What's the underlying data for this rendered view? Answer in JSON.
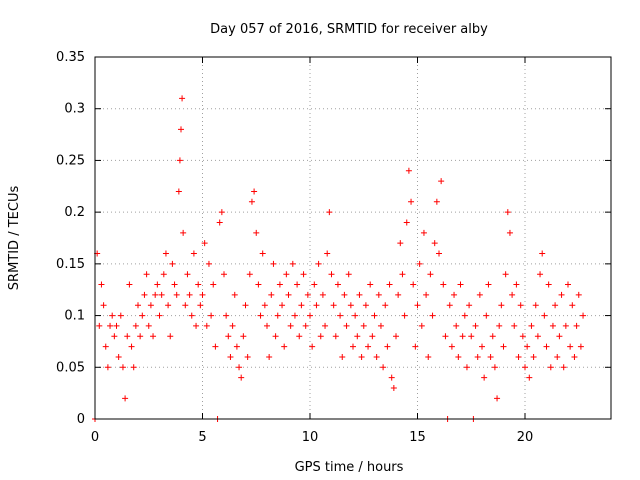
{
  "chart_data": {
    "type": "scatter",
    "title": "Day 057 of 2016, SRMTID for receiver alby",
    "xlabel": "GPS time / hours",
    "ylabel": "SRMTID / TECUs",
    "xlim": [
      0,
      24
    ],
    "ylim": [
      0,
      0.35
    ],
    "x_ticks": [
      0,
      5,
      10,
      15,
      20
    ],
    "x_tick_labels": [
      "0",
      "5",
      "10",
      "15",
      "20"
    ],
    "y_ticks": [
      0,
      0.05,
      0.1,
      0.15,
      0.2,
      0.25,
      0.3,
      0.35
    ],
    "y_tick_labels": [
      "0",
      "0.05",
      "0.1",
      "0.15",
      "0.2",
      "0.25",
      "0.3",
      "0.35"
    ],
    "grid": true,
    "marker": "plus",
    "marker_color": "#ff0000",
    "series": [
      {
        "name": "SRMTID",
        "points": [
          [
            0.0,
            0.0
          ],
          [
            0.1,
            0.16
          ],
          [
            0.2,
            0.09
          ],
          [
            0.3,
            0.13
          ],
          [
            0.4,
            0.11
          ],
          [
            0.5,
            0.07
          ],
          [
            0.6,
            0.05
          ],
          [
            0.7,
            0.09
          ],
          [
            0.8,
            0.1
          ],
          [
            0.9,
            0.08
          ],
          [
            1.0,
            0.09
          ],
          [
            1.1,
            0.06
          ],
          [
            1.2,
            0.1
          ],
          [
            1.3,
            0.05
          ],
          [
            1.4,
            0.02
          ],
          [
            1.5,
            0.08
          ],
          [
            1.6,
            0.13
          ],
          [
            1.7,
            0.07
          ],
          [
            1.8,
            0.05
          ],
          [
            1.9,
            0.09
          ],
          [
            2.0,
            0.11
          ],
          [
            2.1,
            0.08
          ],
          [
            2.2,
            0.1
          ],
          [
            2.3,
            0.12
          ],
          [
            2.4,
            0.14
          ],
          [
            2.5,
            0.09
          ],
          [
            2.6,
            0.11
          ],
          [
            2.7,
            0.08
          ],
          [
            2.8,
            0.12
          ],
          [
            2.9,
            0.13
          ],
          [
            3.0,
            0.1
          ],
          [
            3.1,
            0.12
          ],
          [
            3.2,
            0.14
          ],
          [
            3.3,
            0.16
          ],
          [
            3.4,
            0.11
          ],
          [
            3.5,
            0.08
          ],
          [
            3.6,
            0.15
          ],
          [
            3.7,
            0.13
          ],
          [
            3.8,
            0.12
          ],
          [
            3.9,
            0.22
          ],
          [
            3.95,
            0.25
          ],
          [
            4.0,
            0.28
          ],
          [
            4.05,
            0.31
          ],
          [
            4.1,
            0.18
          ],
          [
            4.2,
            0.11
          ],
          [
            4.3,
            0.14
          ],
          [
            4.4,
            0.12
          ],
          [
            4.5,
            0.1
          ],
          [
            4.6,
            0.16
          ],
          [
            4.7,
            0.09
          ],
          [
            4.8,
            0.13
          ],
          [
            4.9,
            0.11
          ],
          [
            5.0,
            0.12
          ],
          [
            5.1,
            0.17
          ],
          [
            5.2,
            0.09
          ],
          [
            5.3,
            0.15
          ],
          [
            5.4,
            0.1
          ],
          [
            5.5,
            0.13
          ],
          [
            5.6,
            0.07
          ],
          [
            5.7,
            0.0
          ],
          [
            5.8,
            0.19
          ],
          [
            5.9,
            0.2
          ],
          [
            6.0,
            0.14
          ],
          [
            6.1,
            0.1
          ],
          [
            6.2,
            0.08
          ],
          [
            6.3,
            0.06
          ],
          [
            6.4,
            0.09
          ],
          [
            6.5,
            0.12
          ],
          [
            6.6,
            0.07
          ],
          [
            6.7,
            0.05
          ],
          [
            6.8,
            0.04
          ],
          [
            6.9,
            0.08
          ],
          [
            7.0,
            0.11
          ],
          [
            7.1,
            0.06
          ],
          [
            7.2,
            0.14
          ],
          [
            7.3,
            0.21
          ],
          [
            7.4,
            0.22
          ],
          [
            7.5,
            0.18
          ],
          [
            7.6,
            0.13
          ],
          [
            7.7,
            0.1
          ],
          [
            7.8,
            0.16
          ],
          [
            7.9,
            0.11
          ],
          [
            8.0,
            0.09
          ],
          [
            8.1,
            0.06
          ],
          [
            8.2,
            0.12
          ],
          [
            8.3,
            0.15
          ],
          [
            8.4,
            0.08
          ],
          [
            8.5,
            0.1
          ],
          [
            8.6,
            0.13
          ],
          [
            8.7,
            0.11
          ],
          [
            8.8,
            0.07
          ],
          [
            8.9,
            0.14
          ],
          [
            9.0,
            0.12
          ],
          [
            9.1,
            0.09
          ],
          [
            9.2,
            0.15
          ],
          [
            9.3,
            0.1
          ],
          [
            9.4,
            0.13
          ],
          [
            9.5,
            0.08
          ],
          [
            9.6,
            0.11
          ],
          [
            9.7,
            0.14
          ],
          [
            9.8,
            0.09
          ],
          [
            9.9,
            0.12
          ],
          [
            10.0,
            0.1
          ],
          [
            10.1,
            0.07
          ],
          [
            10.2,
            0.13
          ],
          [
            10.3,
            0.11
          ],
          [
            10.4,
            0.15
          ],
          [
            10.5,
            0.08
          ],
          [
            10.6,
            0.12
          ],
          [
            10.7,
            0.09
          ],
          [
            10.8,
            0.16
          ],
          [
            10.9,
            0.2
          ],
          [
            11.0,
            0.14
          ],
          [
            11.1,
            0.11
          ],
          [
            11.2,
            0.08
          ],
          [
            11.3,
            0.13
          ],
          [
            11.4,
            0.1
          ],
          [
            11.5,
            0.06
          ],
          [
            11.6,
            0.12
          ],
          [
            11.7,
            0.09
          ],
          [
            11.8,
            0.14
          ],
          [
            11.9,
            0.11
          ],
          [
            12.0,
            0.07
          ],
          [
            12.1,
            0.1
          ],
          [
            12.2,
            0.08
          ],
          [
            12.3,
            0.12
          ],
          [
            12.4,
            0.06
          ],
          [
            12.5,
            0.09
          ],
          [
            12.6,
            0.11
          ],
          [
            12.7,
            0.07
          ],
          [
            12.8,
            0.13
          ],
          [
            12.9,
            0.08
          ],
          [
            13.0,
            0.1
          ],
          [
            13.1,
            0.06
          ],
          [
            13.2,
            0.12
          ],
          [
            13.3,
            0.09
          ],
          [
            13.4,
            0.05
          ],
          [
            13.5,
            0.11
          ],
          [
            13.6,
            0.07
          ],
          [
            13.7,
            0.13
          ],
          [
            13.8,
            0.04
          ],
          [
            13.9,
            0.03
          ],
          [
            14.0,
            0.08
          ],
          [
            14.1,
            0.12
          ],
          [
            14.2,
            0.17
          ],
          [
            14.3,
            0.14
          ],
          [
            14.4,
            0.1
          ],
          [
            14.5,
            0.19
          ],
          [
            14.6,
            0.24
          ],
          [
            14.7,
            0.21
          ],
          [
            14.8,
            0.13
          ],
          [
            14.9,
            0.07
          ],
          [
            15.0,
            0.11
          ],
          [
            15.1,
            0.15
          ],
          [
            15.2,
            0.09
          ],
          [
            15.3,
            0.18
          ],
          [
            15.4,
            0.12
          ],
          [
            15.5,
            0.06
          ],
          [
            15.6,
            0.14
          ],
          [
            15.7,
            0.1
          ],
          [
            15.8,
            0.17
          ],
          [
            15.9,
            0.21
          ],
          [
            16.0,
            0.16
          ],
          [
            16.1,
            0.23
          ],
          [
            16.2,
            0.13
          ],
          [
            16.3,
            0.08
          ],
          [
            16.4,
            0.0
          ],
          [
            16.5,
            0.11
          ],
          [
            16.6,
            0.07
          ],
          [
            16.7,
            0.12
          ],
          [
            16.8,
            0.09
          ],
          [
            16.9,
            0.06
          ],
          [
            17.0,
            0.13
          ],
          [
            17.1,
            0.08
          ],
          [
            17.2,
            0.1
          ],
          [
            17.3,
            0.05
          ],
          [
            17.4,
            0.11
          ],
          [
            17.5,
            0.08
          ],
          [
            17.6,
            0.0
          ],
          [
            17.7,
            0.09
          ],
          [
            17.8,
            0.06
          ],
          [
            17.9,
            0.12
          ],
          [
            18.0,
            0.07
          ],
          [
            18.1,
            0.04
          ],
          [
            18.2,
            0.1
          ],
          [
            18.3,
            0.13
          ],
          [
            18.4,
            0.06
          ],
          [
            18.5,
            0.08
          ],
          [
            18.6,
            0.05
          ],
          [
            18.7,
            0.02
          ],
          [
            18.8,
            0.09
          ],
          [
            18.9,
            0.11
          ],
          [
            19.0,
            0.07
          ],
          [
            19.1,
            0.14
          ],
          [
            19.2,
            0.2
          ],
          [
            19.3,
            0.18
          ],
          [
            19.4,
            0.12
          ],
          [
            19.5,
            0.09
          ],
          [
            19.6,
            0.13
          ],
          [
            19.7,
            0.06
          ],
          [
            19.8,
            0.11
          ],
          [
            19.9,
            0.08
          ],
          [
            20.0,
            0.05
          ],
          [
            20.1,
            0.07
          ],
          [
            20.2,
            0.04
          ],
          [
            20.3,
            0.09
          ],
          [
            20.4,
            0.06
          ],
          [
            20.5,
            0.11
          ],
          [
            20.6,
            0.08
          ],
          [
            20.7,
            0.14
          ],
          [
            20.8,
            0.16
          ],
          [
            20.9,
            0.1
          ],
          [
            21.0,
            0.07
          ],
          [
            21.1,
            0.13
          ],
          [
            21.2,
            0.05
          ],
          [
            21.3,
            0.09
          ],
          [
            21.4,
            0.11
          ],
          [
            21.5,
            0.06
          ],
          [
            21.6,
            0.08
          ],
          [
            21.7,
            0.12
          ],
          [
            21.8,
            0.05
          ],
          [
            21.9,
            0.09
          ],
          [
            22.0,
            0.13
          ],
          [
            22.1,
            0.07
          ],
          [
            22.2,
            0.11
          ],
          [
            22.3,
            0.06
          ],
          [
            22.4,
            0.09
          ],
          [
            22.5,
            0.12
          ],
          [
            22.6,
            0.07
          ],
          [
            22.7,
            0.1
          ]
        ]
      }
    ]
  }
}
